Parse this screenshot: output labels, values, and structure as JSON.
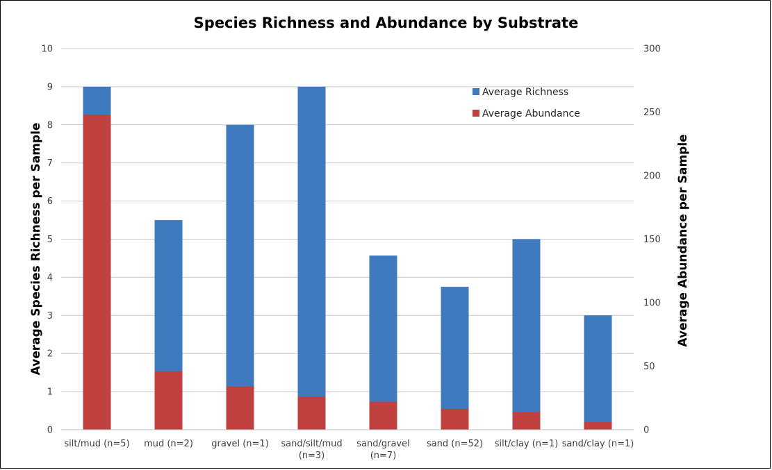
{
  "chart_data": {
    "type": "bar",
    "title": "Species Richness and Abundance by Substrate",
    "categories": [
      [
        "silt/mud (n=5)"
      ],
      [
        "mud (n=2)"
      ],
      [
        "gravel (n=1)"
      ],
      [
        "sand/silt/mud",
        "(n=3)"
      ],
      [
        "sand/gravel",
        "(n=7)"
      ],
      [
        "sand (n=52)"
      ],
      [
        "silt/clay (n=1)"
      ],
      [
        "sand/clay (n=1)"
      ]
    ],
    "ylabel": "Average Species Richness per Sample",
    "y2label": "Average Abundance per Sample",
    "ylim": [
      0,
      10
    ],
    "y2lim": [
      0,
      300
    ],
    "yticks": [
      "0",
      "1",
      "2",
      "3",
      "4",
      "5",
      "6",
      "7",
      "8",
      "9",
      "10"
    ],
    "y2ticks": [
      "0",
      "50",
      "100",
      "150",
      "200",
      "250",
      "300"
    ],
    "grid": true,
    "legend_position": "top-right",
    "series": [
      {
        "name": "Average Richness",
        "axis": "left",
        "color": "#3f7abf",
        "values": [
          9.0,
          5.5,
          8.0,
          9.0,
          4.57,
          3.75,
          5.0,
          3.0
        ]
      },
      {
        "name": "Average Abundance",
        "axis": "right",
        "color": "#c0403f",
        "values": [
          248,
          46,
          34,
          26,
          22,
          16.5,
          14,
          6
        ]
      }
    ]
  }
}
